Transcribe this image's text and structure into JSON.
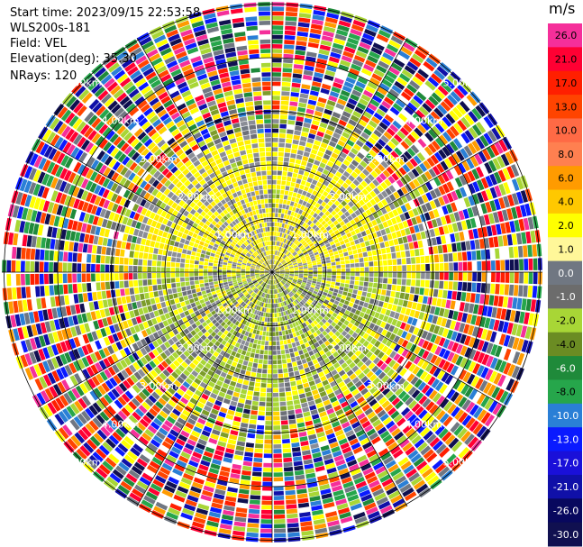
{
  "header": {
    "start_time": "Start time: 2023/09/15 22:53:58",
    "site": "WLS200s-181",
    "field": "Field: VEL",
    "elevation": "Elevation(deg): 35.30",
    "nrays": "NRays: 120"
  },
  "colorbar": {
    "unit": "m/s",
    "ticks": [
      "26.0",
      "21.0",
      "17.0",
      "13.0",
      "10.0",
      "8.0",
      "6.0",
      "4.0",
      "2.0",
      "1.0",
      "0.0",
      "-1.0",
      "-2.0",
      "-4.0",
      "-6.0",
      "-8.0",
      "-10.0",
      "-13.0",
      "-17.0",
      "-21.0",
      "-26.0",
      "-30.0"
    ],
    "colors": [
      "#f52f9a",
      "#ff0033",
      "#ff1f00",
      "#ff4400",
      "#ff6a45",
      "#ff8050",
      "#ff9b00",
      "#ffc800",
      "#ffff00",
      "#fff799",
      "#707782",
      "#6c6c6c",
      "#a8d636",
      "#6b8c23",
      "#1f8a3a",
      "#26a64b",
      "#2a7fd6",
      "#0a1aff",
      "#1a10d9",
      "#1010a8",
      "#08085e",
      "#101050"
    ]
  },
  "chart_data": {
    "type": "heatmap",
    "projection": "polar PPI",
    "n_rays": 120,
    "range_rings_km": [
      1,
      2,
      3,
      4,
      5
    ],
    "ring_labels": [
      "1.00km",
      "2.00km",
      "3.00km",
      "4.00km",
      "5.00km"
    ],
    "field": "VEL",
    "vmin": -30.0,
    "vmax": 26.0
  }
}
